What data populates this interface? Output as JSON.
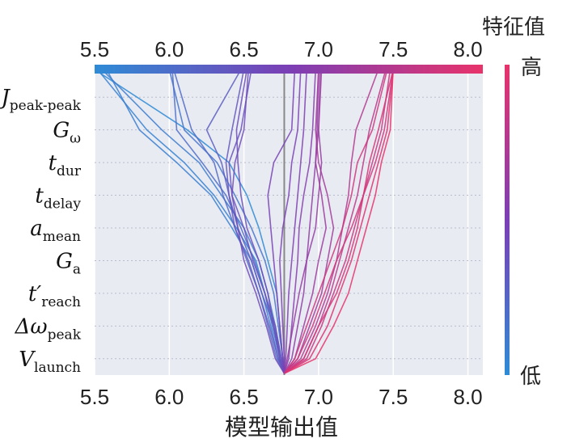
{
  "chart_data": {
    "type": "line",
    "title": "",
    "xlabel": "模型输出值",
    "ylabel": "",
    "xlim": [
      5.5,
      8.1
    ],
    "x_ticks": [
      "5.5",
      "6.0",
      "6.5",
      "7.0",
      "7.5",
      "8.0"
    ],
    "expected_value": 6.77,
    "features": [
      "J_peak-peak",
      "G_ω",
      "t_dur",
      "t_delay",
      "a_mean",
      "G_a",
      "t′_reach",
      "Δω_peak",
      "V_launch"
    ],
    "feature_labels": [
      {
        "main": "J",
        "sub": "peak-peak",
        "prime": ""
      },
      {
        "main": "G",
        "sub": "ω",
        "prime": ""
      },
      {
        "main": "t",
        "sub": "dur",
        "prime": ""
      },
      {
        "main": "t",
        "sub": "delay",
        "prime": ""
      },
      {
        "main": "a",
        "sub": "mean",
        "prime": ""
      },
      {
        "main": "G",
        "sub": "a",
        "prime": ""
      },
      {
        "main": "t",
        "sub": "reach",
        "prime": "′"
      },
      {
        "main": "Δω",
        "sub": "peak",
        "prime": ""
      },
      {
        "main": "V",
        "sub": "launch",
        "prime": ""
      }
    ],
    "colorbar": {
      "label": "特征值",
      "high": "高",
      "low": "低",
      "low_color": "#2e8bd6",
      "mid_color": "#7b3fb5",
      "high_color": "#e8336b"
    },
    "grid": true,
    "series": [
      {
        "values": [
          6.77,
          6.76,
          6.74,
          6.72,
          6.66,
          6.6,
          6.52,
          6.4,
          6.12,
          5.5
        ],
        "color_value": 0.0
      },
      {
        "values": [
          6.77,
          6.74,
          6.7,
          6.64,
          6.58,
          6.45,
          6.3,
          6.1,
          5.85,
          5.52
        ],
        "color_value": 0.05
      },
      {
        "values": [
          6.77,
          6.75,
          6.71,
          6.66,
          6.6,
          6.5,
          6.35,
          6.2,
          5.95,
          5.55
        ],
        "color_value": 0.1
      },
      {
        "values": [
          6.77,
          6.73,
          6.68,
          6.62,
          6.55,
          6.42,
          6.28,
          6.05,
          5.8,
          5.58
        ],
        "color_value": 0.08
      },
      {
        "values": [
          6.77,
          6.76,
          6.73,
          6.7,
          6.64,
          6.55,
          6.44,
          6.32,
          6.1,
          6.0
        ],
        "color_value": 0.15
      },
      {
        "values": [
          6.77,
          6.74,
          6.69,
          6.64,
          6.57,
          6.48,
          6.38,
          6.22,
          6.05,
          6.02
        ],
        "color_value": 0.2
      },
      {
        "values": [
          6.77,
          6.72,
          6.66,
          6.6,
          6.52,
          6.44,
          6.36,
          6.3,
          6.15,
          6.03
        ],
        "color_value": 0.22
      },
      {
        "values": [
          6.77,
          6.75,
          6.7,
          6.62,
          6.55,
          6.46,
          6.4,
          6.35,
          6.25,
          6.48
        ],
        "color_value": 0.3
      },
      {
        "values": [
          6.77,
          6.73,
          6.67,
          6.6,
          6.53,
          6.44,
          6.4,
          6.38,
          6.42,
          6.5
        ],
        "color_value": 0.35
      },
      {
        "values": [
          6.77,
          6.74,
          6.7,
          6.66,
          6.6,
          6.52,
          6.48,
          6.46,
          6.45,
          6.52
        ],
        "color_value": 0.4
      },
      {
        "values": [
          6.77,
          6.75,
          6.71,
          6.64,
          6.56,
          6.5,
          6.42,
          6.4,
          6.48,
          6.55
        ],
        "color_value": 0.38
      },
      {
        "values": [
          6.77,
          6.71,
          6.65,
          6.58,
          6.5,
          6.46,
          6.42,
          6.44,
          6.5,
          6.53
        ],
        "color_value": 0.42
      },
      {
        "values": [
          6.77,
          6.76,
          6.74,
          6.72,
          6.7,
          6.68,
          6.66,
          6.7,
          6.82,
          6.84
        ],
        "color_value": 0.48
      },
      {
        "values": [
          6.77,
          6.77,
          6.76,
          6.75,
          6.74,
          6.76,
          6.8,
          6.82,
          6.86,
          6.88
        ],
        "color_value": 0.5
      },
      {
        "values": [
          6.77,
          6.78,
          6.79,
          6.8,
          6.82,
          6.84,
          6.86,
          6.88,
          6.9,
          6.92
        ],
        "color_value": 0.52
      },
      {
        "values": [
          6.77,
          6.8,
          6.82,
          6.84,
          6.86,
          6.87,
          6.9,
          6.94,
          6.96,
          6.98
        ],
        "color_value": 0.55
      },
      {
        "values": [
          6.77,
          6.82,
          6.86,
          6.9,
          6.92,
          6.94,
          6.96,
          6.98,
          6.99,
          7.0
        ],
        "color_value": 0.6
      },
      {
        "values": [
          6.77,
          6.79,
          6.83,
          6.87,
          6.92,
          6.98,
          7.0,
          7.02,
          7.0,
          7.01
        ],
        "color_value": 0.62
      },
      {
        "values": [
          6.77,
          6.84,
          6.9,
          6.96,
          7.0,
          7.05,
          7.02,
          6.98,
          7.0,
          7.02
        ],
        "color_value": 0.65
      },
      {
        "values": [
          6.77,
          6.86,
          6.94,
          7.02,
          7.06,
          7.1,
          7.06,
          7.0,
          6.98,
          7.0
        ],
        "color_value": 0.68
      },
      {
        "values": [
          6.77,
          6.88,
          6.98,
          7.06,
          7.12,
          7.16,
          7.2,
          7.22,
          7.25,
          7.4
        ],
        "color_value": 0.75
      },
      {
        "values": [
          6.77,
          6.9,
          7.0,
          7.08,
          7.14,
          7.2,
          7.26,
          7.3,
          7.34,
          7.45
        ],
        "color_value": 0.8
      },
      {
        "values": [
          6.77,
          6.92,
          7.02,
          7.1,
          7.18,
          7.24,
          7.3,
          7.36,
          7.42,
          7.48
        ],
        "color_value": 0.85
      },
      {
        "values": [
          6.77,
          6.86,
          6.96,
          7.04,
          7.12,
          7.22,
          7.3,
          7.38,
          7.44,
          7.5
        ],
        "color_value": 0.9
      },
      {
        "values": [
          6.77,
          6.94,
          7.06,
          7.14,
          7.22,
          7.28,
          7.34,
          7.4,
          7.46,
          7.5
        ],
        "color_value": 0.95
      },
      {
        "values": [
          6.77,
          6.98,
          7.1,
          7.2,
          7.26,
          7.32,
          7.38,
          7.42,
          7.48,
          7.5
        ],
        "color_value": 1.0
      },
      {
        "values": [
          6.77,
          6.9,
          7.0,
          7.12,
          7.2,
          7.26,
          7.3,
          7.34,
          7.4,
          7.5
        ],
        "color_value": 0.92
      },
      {
        "values": [
          6.77,
          6.84,
          6.92,
          7.0,
          7.08,
          7.16,
          7.22,
          7.26,
          7.36,
          7.46
        ],
        "color_value": 0.88
      }
    ]
  }
}
